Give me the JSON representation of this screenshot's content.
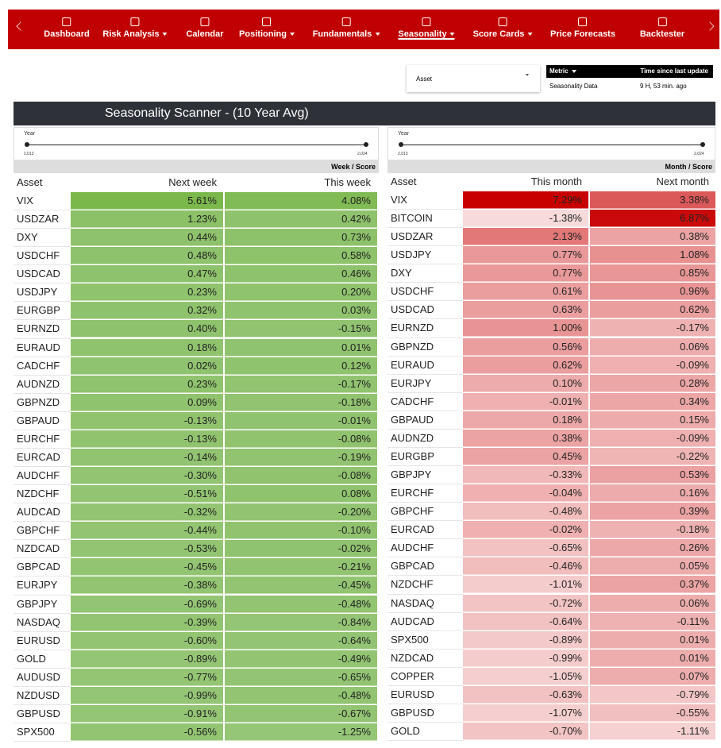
{
  "nav": {
    "items": [
      "Dashboard",
      "Risk Analysis",
      "Calendar",
      "Positioning",
      "Fundamentals",
      "Seasonality",
      "Score Cards",
      "Price Forecasts",
      "Backtester"
    ],
    "active": 5
  },
  "filter": {
    "label": "Asset"
  },
  "metric": {
    "header": [
      "Metric",
      "Time since last update"
    ],
    "row": [
      "Seasonality Data",
      "9 H, 53 min. ago"
    ]
  },
  "title": "Seasonality Scanner - (10 Year Avg)",
  "left": {
    "slider": {
      "label": "Year",
      "min": "2,013",
      "max": "2,024"
    },
    "group": "Week / Score",
    "columns": [
      "Asset",
      "Next week",
      "This week"
    ],
    "rows": [
      [
        "VIX",
        "5.61%",
        "4.08%"
      ],
      [
        "USDZAR",
        "1.23%",
        "0.42%"
      ],
      [
        "DXY",
        "0.44%",
        "0.73%"
      ],
      [
        "USDCHF",
        "0.48%",
        "0.58%"
      ],
      [
        "USDCAD",
        "0.47%",
        "0.46%"
      ],
      [
        "USDJPY",
        "0.23%",
        "0.20%"
      ],
      [
        "EURGBP",
        "0.32%",
        "0.03%"
      ],
      [
        "EURNZD",
        "0.40%",
        "-0.15%"
      ],
      [
        "EURAUD",
        "0.18%",
        "0.01%"
      ],
      [
        "CADCHF",
        "0.02%",
        "0.12%"
      ],
      [
        "AUDNZD",
        "0.23%",
        "-0.17%"
      ],
      [
        "GBPNZD",
        "0.09%",
        "-0.18%"
      ],
      [
        "GBPAUD",
        "-0.13%",
        "-0.01%"
      ],
      [
        "EURCHF",
        "-0.13%",
        "-0.08%"
      ],
      [
        "EURCAD",
        "-0.14%",
        "-0.19%"
      ],
      [
        "AUDCHF",
        "-0.30%",
        "-0.08%"
      ],
      [
        "NZDCHF",
        "-0.51%",
        "0.08%"
      ],
      [
        "AUDCAD",
        "-0.32%",
        "-0.20%"
      ],
      [
        "GBPCHF",
        "-0.44%",
        "-0.10%"
      ],
      [
        "NZDCAD",
        "-0.53%",
        "-0.02%"
      ],
      [
        "GBPCAD",
        "-0.45%",
        "-0.21%"
      ],
      [
        "EURJPY",
        "-0.38%",
        "-0.45%"
      ],
      [
        "GBPJPY",
        "-0.69%",
        "-0.48%"
      ],
      [
        "NASDAQ",
        "-0.39%",
        "-0.84%"
      ],
      [
        "EURUSD",
        "-0.60%",
        "-0.64%"
      ],
      [
        "GOLD",
        "-0.89%",
        "-0.49%"
      ],
      [
        "AUDUSD",
        "-0.77%",
        "-0.65%"
      ],
      [
        "NZDUSD",
        "-0.99%",
        "-0.48%"
      ],
      [
        "GBPUSD",
        "-0.91%",
        "-0.67%"
      ],
      [
        "SPX500",
        "-0.56%",
        "-1.25%"
      ]
    ]
  },
  "right": {
    "slider": {
      "label": "Year",
      "min": "2,013",
      "max": "2,024"
    },
    "group": "Month / Score",
    "columns": [
      "Asset",
      "This month",
      "Next month"
    ],
    "rows": [
      [
        "VIX",
        "7.29%",
        "3.38%"
      ],
      [
        "BITCOIN",
        "-1.38%",
        "6.87%"
      ],
      [
        "USDZAR",
        "2.13%",
        "0.38%"
      ],
      [
        "USDJPY",
        "0.77%",
        "1.08%"
      ],
      [
        "DXY",
        "0.77%",
        "0.85%"
      ],
      [
        "USDCHF",
        "0.61%",
        "0.96%"
      ],
      [
        "USDCAD",
        "0.63%",
        "0.62%"
      ],
      [
        "EURNZD",
        "1.00%",
        "-0.17%"
      ],
      [
        "GBPNZD",
        "0.56%",
        "0.06%"
      ],
      [
        "EURAUD",
        "0.62%",
        "-0.09%"
      ],
      [
        "EURJPY",
        "0.10%",
        "0.28%"
      ],
      [
        "CADCHF",
        "-0.01%",
        "0.34%"
      ],
      [
        "GBPAUD",
        "0.18%",
        "0.15%"
      ],
      [
        "AUDNZD",
        "0.38%",
        "-0.09%"
      ],
      [
        "EURGBP",
        "0.45%",
        "-0.22%"
      ],
      [
        "GBPJPY",
        "-0.33%",
        "0.53%"
      ],
      [
        "EURCHF",
        "-0.04%",
        "0.16%"
      ],
      [
        "GBPCHF",
        "-0.48%",
        "0.39%"
      ],
      [
        "EURCAD",
        "-0.02%",
        "-0.18%"
      ],
      [
        "AUDCHF",
        "-0.65%",
        "0.26%"
      ],
      [
        "GBPCAD",
        "-0.46%",
        "0.05%"
      ],
      [
        "NZDCHF",
        "-1.01%",
        "0.37%"
      ],
      [
        "NASDAQ",
        "-0.72%",
        "0.06%"
      ],
      [
        "AUDCAD",
        "-0.64%",
        "-0.11%"
      ],
      [
        "SPX500",
        "-0.89%",
        "0.01%"
      ],
      [
        "NZDCAD",
        "-0.99%",
        "0.01%"
      ],
      [
        "COPPER",
        "-1.05%",
        "0.07%"
      ],
      [
        "EURUSD",
        "-0.63%",
        "-0.79%"
      ],
      [
        "GBPUSD",
        "-1.07%",
        "-0.55%"
      ],
      [
        "GOLD",
        "-0.70%",
        "-1.11%"
      ]
    ]
  }
}
